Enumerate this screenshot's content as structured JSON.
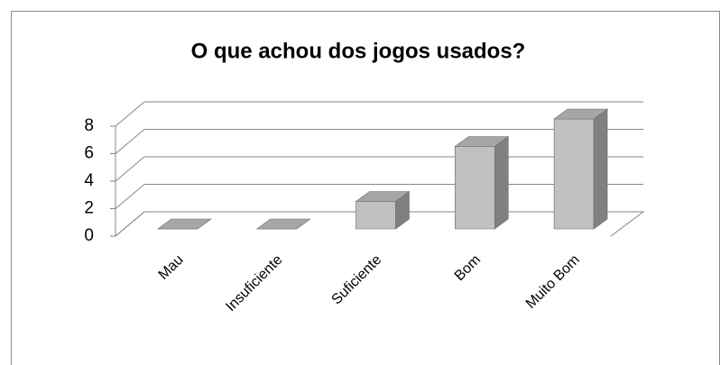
{
  "chart_data": {
    "type": "bar3d",
    "title": "O que achou dos jogos usados?",
    "categories": [
      "Mau",
      "Insuficiente",
      "Suficiente",
      "Bom",
      "Muito Bom"
    ],
    "values": [
      0,
      0,
      2,
      6,
      8
    ],
    "color": "#c0c0c0",
    "ylim": [
      0,
      8
    ],
    "yticks": [
      0,
      2,
      4,
      6,
      8
    ],
    "grid": true
  }
}
